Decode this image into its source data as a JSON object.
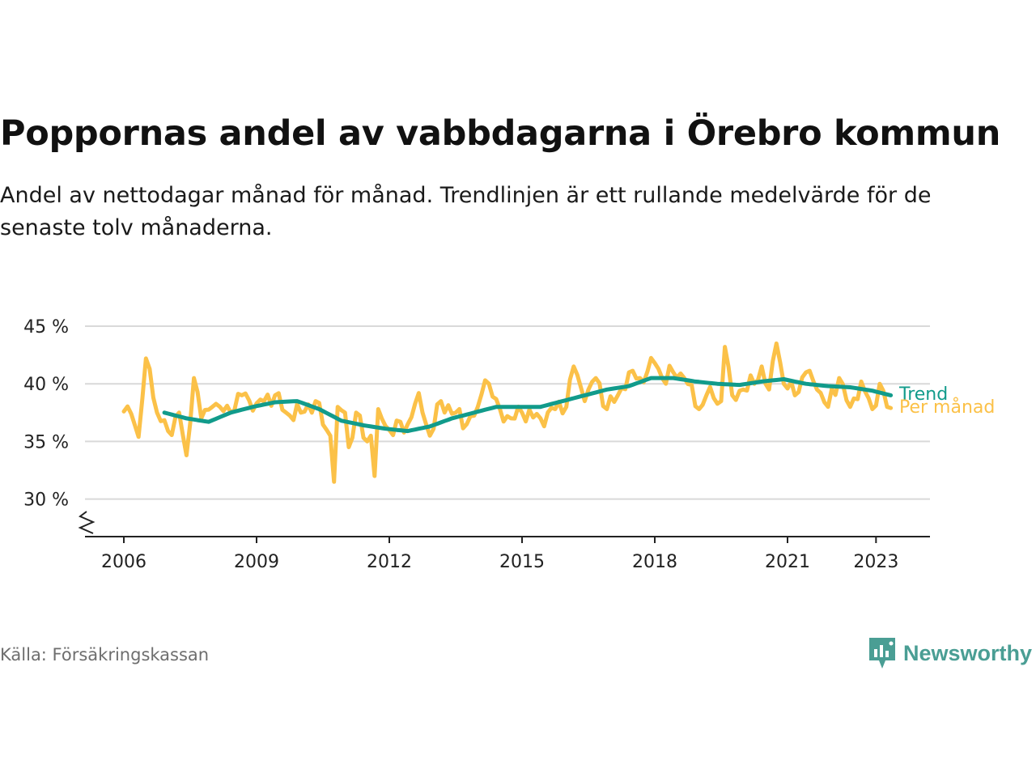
{
  "header": {
    "title": "Poppornas andel av vabbdagarna i Örebro kommun",
    "subtitle": "Andel av nettodagar månad för månad. Trendlinjen är ett rullande medelvärde för de senaste tolv månaderna."
  },
  "footer": {
    "source": "Källa: Försäkringskassan",
    "brand": "Newsworthy",
    "brand_icon": "newsworthy-logo-icon"
  },
  "colors": {
    "monthly": "#fbc148",
    "trend": "#119b8b",
    "grid": "#d9d9d9",
    "axis": "#222222",
    "brand": "#4a9e94"
  },
  "chart_data": {
    "type": "line",
    "x_unit": "month",
    "y_unit": "%",
    "ylim": [
      27,
      45
    ],
    "y_axis_break": true,
    "y_ticks": [
      "30 %",
      "35 %",
      "40 %",
      "45 %"
    ],
    "y_tick_values": [
      30,
      35,
      40,
      45
    ],
    "x_ticks": [
      "2006",
      "2009",
      "2012",
      "2015",
      "2018",
      "2021",
      "2023"
    ],
    "grid": true,
    "series": [
      {
        "name": "Per månad",
        "start": "2006-01",
        "end": "2023-05",
        "key_points": [
          [
            "2006-01",
            37.6
          ],
          [
            "2006-03",
            37.4
          ],
          [
            "2006-05",
            35.4
          ],
          [
            "2006-07",
            42.2
          ],
          [
            "2006-08",
            41.3
          ],
          [
            "2006-10",
            37.5
          ],
          [
            "2007-01",
            35.9
          ],
          [
            "2007-04",
            37.5
          ],
          [
            "2007-06",
            33.8
          ],
          [
            "2007-08",
            40.5
          ],
          [
            "2007-10",
            37.0
          ],
          [
            "2008-01",
            38.0
          ],
          [
            "2008-06",
            37.5
          ],
          [
            "2008-09",
            39.0
          ],
          [
            "2009-01",
            38.3
          ],
          [
            "2009-06",
            39.0
          ],
          [
            "2009-09",
            37.5
          ],
          [
            "2010-01",
            37.5
          ],
          [
            "2010-05",
            38.5
          ],
          [
            "2010-08",
            36.0
          ],
          [
            "2010-09",
            35.5
          ],
          [
            "2010-10",
            31.5
          ],
          [
            "2010-11",
            38.0
          ],
          [
            "2011-01",
            37.5
          ],
          [
            "2011-02",
            34.5
          ],
          [
            "2011-04",
            37.5
          ],
          [
            "2011-07",
            35.0
          ],
          [
            "2011-08",
            35.5
          ],
          [
            "2011-09",
            32.0
          ],
          [
            "2011-10",
            37.8
          ],
          [
            "2012-01",
            36.0
          ],
          [
            "2012-06",
            36.5
          ],
          [
            "2012-09",
            39.2
          ],
          [
            "2012-12",
            35.5
          ],
          [
            "2013-03",
            38.5
          ],
          [
            "2013-10",
            36.5
          ],
          [
            "2014-01",
            38.0
          ],
          [
            "2014-03",
            40.3
          ],
          [
            "2014-07",
            37.8
          ],
          [
            "2014-10",
            37.0
          ],
          [
            "2015-01",
            37.5
          ],
          [
            "2015-06",
            37.0
          ],
          [
            "2015-10",
            37.8
          ],
          [
            "2016-01",
            38.0
          ],
          [
            "2016-03",
            41.5
          ],
          [
            "2016-06",
            38.5
          ],
          [
            "2016-09",
            40.5
          ],
          [
            "2016-12",
            37.8
          ],
          [
            "2017-03",
            39.0
          ],
          [
            "2017-06",
            41.0
          ],
          [
            "2017-09",
            40.5
          ],
          [
            "2018-01",
            41.8
          ],
          [
            "2018-03",
            40.5
          ],
          [
            "2018-06",
            41.0
          ],
          [
            "2018-09",
            40.5
          ],
          [
            "2019-01",
            37.8
          ],
          [
            "2019-03",
            39.0
          ],
          [
            "2019-07",
            38.5
          ],
          [
            "2019-08",
            43.2
          ],
          [
            "2019-10",
            39.0
          ],
          [
            "2020-01",
            39.5
          ],
          [
            "2020-04",
            40.0
          ],
          [
            "2020-06",
            41.5
          ],
          [
            "2020-08",
            39.5
          ],
          [
            "2020-10",
            43.5
          ],
          [
            "2020-12",
            40.0
          ],
          [
            "2021-03",
            39.0
          ],
          [
            "2021-06",
            41.0
          ],
          [
            "2021-09",
            39.5
          ],
          [
            "2021-12",
            38.0
          ],
          [
            "2022-03",
            40.5
          ],
          [
            "2022-06",
            38.0
          ],
          [
            "2022-09",
            40.2
          ],
          [
            "2022-12",
            37.8
          ],
          [
            "2023-02",
            40.0
          ],
          [
            "2023-04",
            38.0
          ],
          [
            "2023-05",
            37.9
          ]
        ]
      },
      {
        "name": "Trend",
        "start": "2006-12",
        "end": "2023-05",
        "key_points": [
          [
            "2006-12",
            37.5
          ],
          [
            "2007-06",
            37.0
          ],
          [
            "2007-12",
            36.7
          ],
          [
            "2008-06",
            37.5
          ],
          [
            "2008-12",
            38.0
          ],
          [
            "2009-06",
            38.4
          ],
          [
            "2009-12",
            38.5
          ],
          [
            "2010-06",
            37.8
          ],
          [
            "2010-12",
            36.8
          ],
          [
            "2011-06",
            36.4
          ],
          [
            "2011-12",
            36.1
          ],
          [
            "2012-06",
            35.9
          ],
          [
            "2012-12",
            36.3
          ],
          [
            "2013-06",
            37.0
          ],
          [
            "2013-12",
            37.5
          ],
          [
            "2014-06",
            38.0
          ],
          [
            "2014-12",
            38.0
          ],
          [
            "2015-06",
            38.0
          ],
          [
            "2015-12",
            38.5
          ],
          [
            "2016-06",
            39.0
          ],
          [
            "2016-12",
            39.5
          ],
          [
            "2017-06",
            39.8
          ],
          [
            "2017-12",
            40.5
          ],
          [
            "2018-06",
            40.5
          ],
          [
            "2018-12",
            40.2
          ],
          [
            "2019-06",
            40.0
          ],
          [
            "2019-12",
            39.9
          ],
          [
            "2020-06",
            40.2
          ],
          [
            "2020-12",
            40.4
          ],
          [
            "2021-06",
            40.0
          ],
          [
            "2021-12",
            39.8
          ],
          [
            "2022-06",
            39.7
          ],
          [
            "2022-12",
            39.4
          ],
          [
            "2023-05",
            39.0
          ]
        ]
      }
    ]
  }
}
